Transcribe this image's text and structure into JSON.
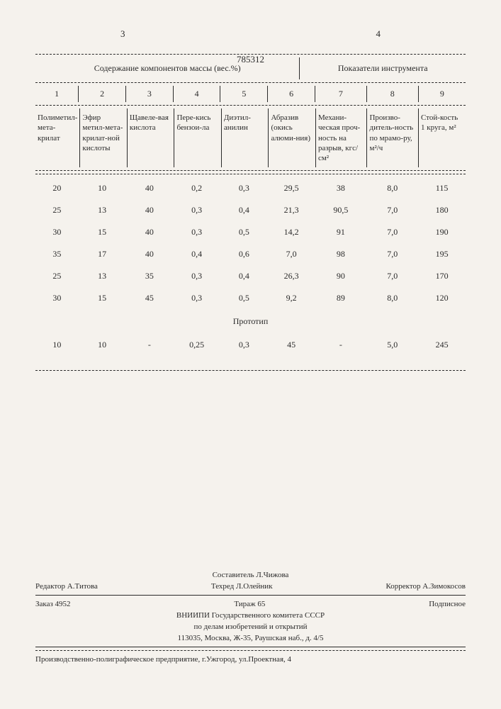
{
  "header": {
    "page_left": "3",
    "doc_number": "785312",
    "page_right": "4"
  },
  "table": {
    "group_headers": {
      "left": "Содержание компонентов массы (вес.%)",
      "right": "Показатели инструмента"
    },
    "col_numbers": [
      "1",
      "2",
      "3",
      "4",
      "5",
      "6",
      "7",
      "8",
      "9"
    ],
    "col_names": [
      "Полиметил-мета-крилат",
      "Эфир метил-мета-крилат-ной кислоты",
      "Щавеле-вая кислота",
      "Пере-кись бензои-ла",
      "Диэтил-анилин",
      "Абразив (окись алюми-ния)",
      "Механи-ческая проч-ность на разрыв, кгс/см²",
      "Произво-дитель-ность по мрамо-ру, м²/ч",
      "Стой-кость 1 круга, м²"
    ],
    "rows": [
      [
        "20",
        "10",
        "40",
        "0,2",
        "0,3",
        "29,5",
        "38",
        "8,0",
        "115"
      ],
      [
        "25",
        "13",
        "40",
        "0,3",
        "0,4",
        "21,3",
        "90,5",
        "7,0",
        "180"
      ],
      [
        "30",
        "15",
        "40",
        "0,3",
        "0,5",
        "14,2",
        "91",
        "7,0",
        "190"
      ],
      [
        "35",
        "17",
        "40",
        "0,4",
        "0,6",
        "7,0",
        "98",
        "7,0",
        "195"
      ],
      [
        "25",
        "13",
        "35",
        "0,3",
        "0,4",
        "26,3",
        "90",
        "7,0",
        "170"
      ],
      [
        "30",
        "15",
        "45",
        "0,3",
        "0,5",
        "9,2",
        "89",
        "8,0",
        "120"
      ]
    ],
    "prototype_label": "Прототип",
    "prototype_row": [
      "10",
      "10",
      "-",
      "0,25",
      "0,3",
      "45",
      "-",
      "5,0",
      "245"
    ]
  },
  "footer": {
    "compiler": "Составитель Л.Чижова",
    "editor": "Редактор А.Титова",
    "techred": "Техред Л.Олейник",
    "corrector": "Корректор А.Зимокосов",
    "order": "Заказ 4952",
    "circulation": "Тираж 65",
    "subscription": "Подписное",
    "org1": "ВНИИПИ Государственного комитета СССР",
    "org2": "по делам изобретений и открытий",
    "address1": "113035, Москва, Ж-35, Раушская наб., д. 4/5",
    "address2": "Производственно-полиграфическое предприятие, г.Ужгород, ул.Проектная, 4"
  }
}
